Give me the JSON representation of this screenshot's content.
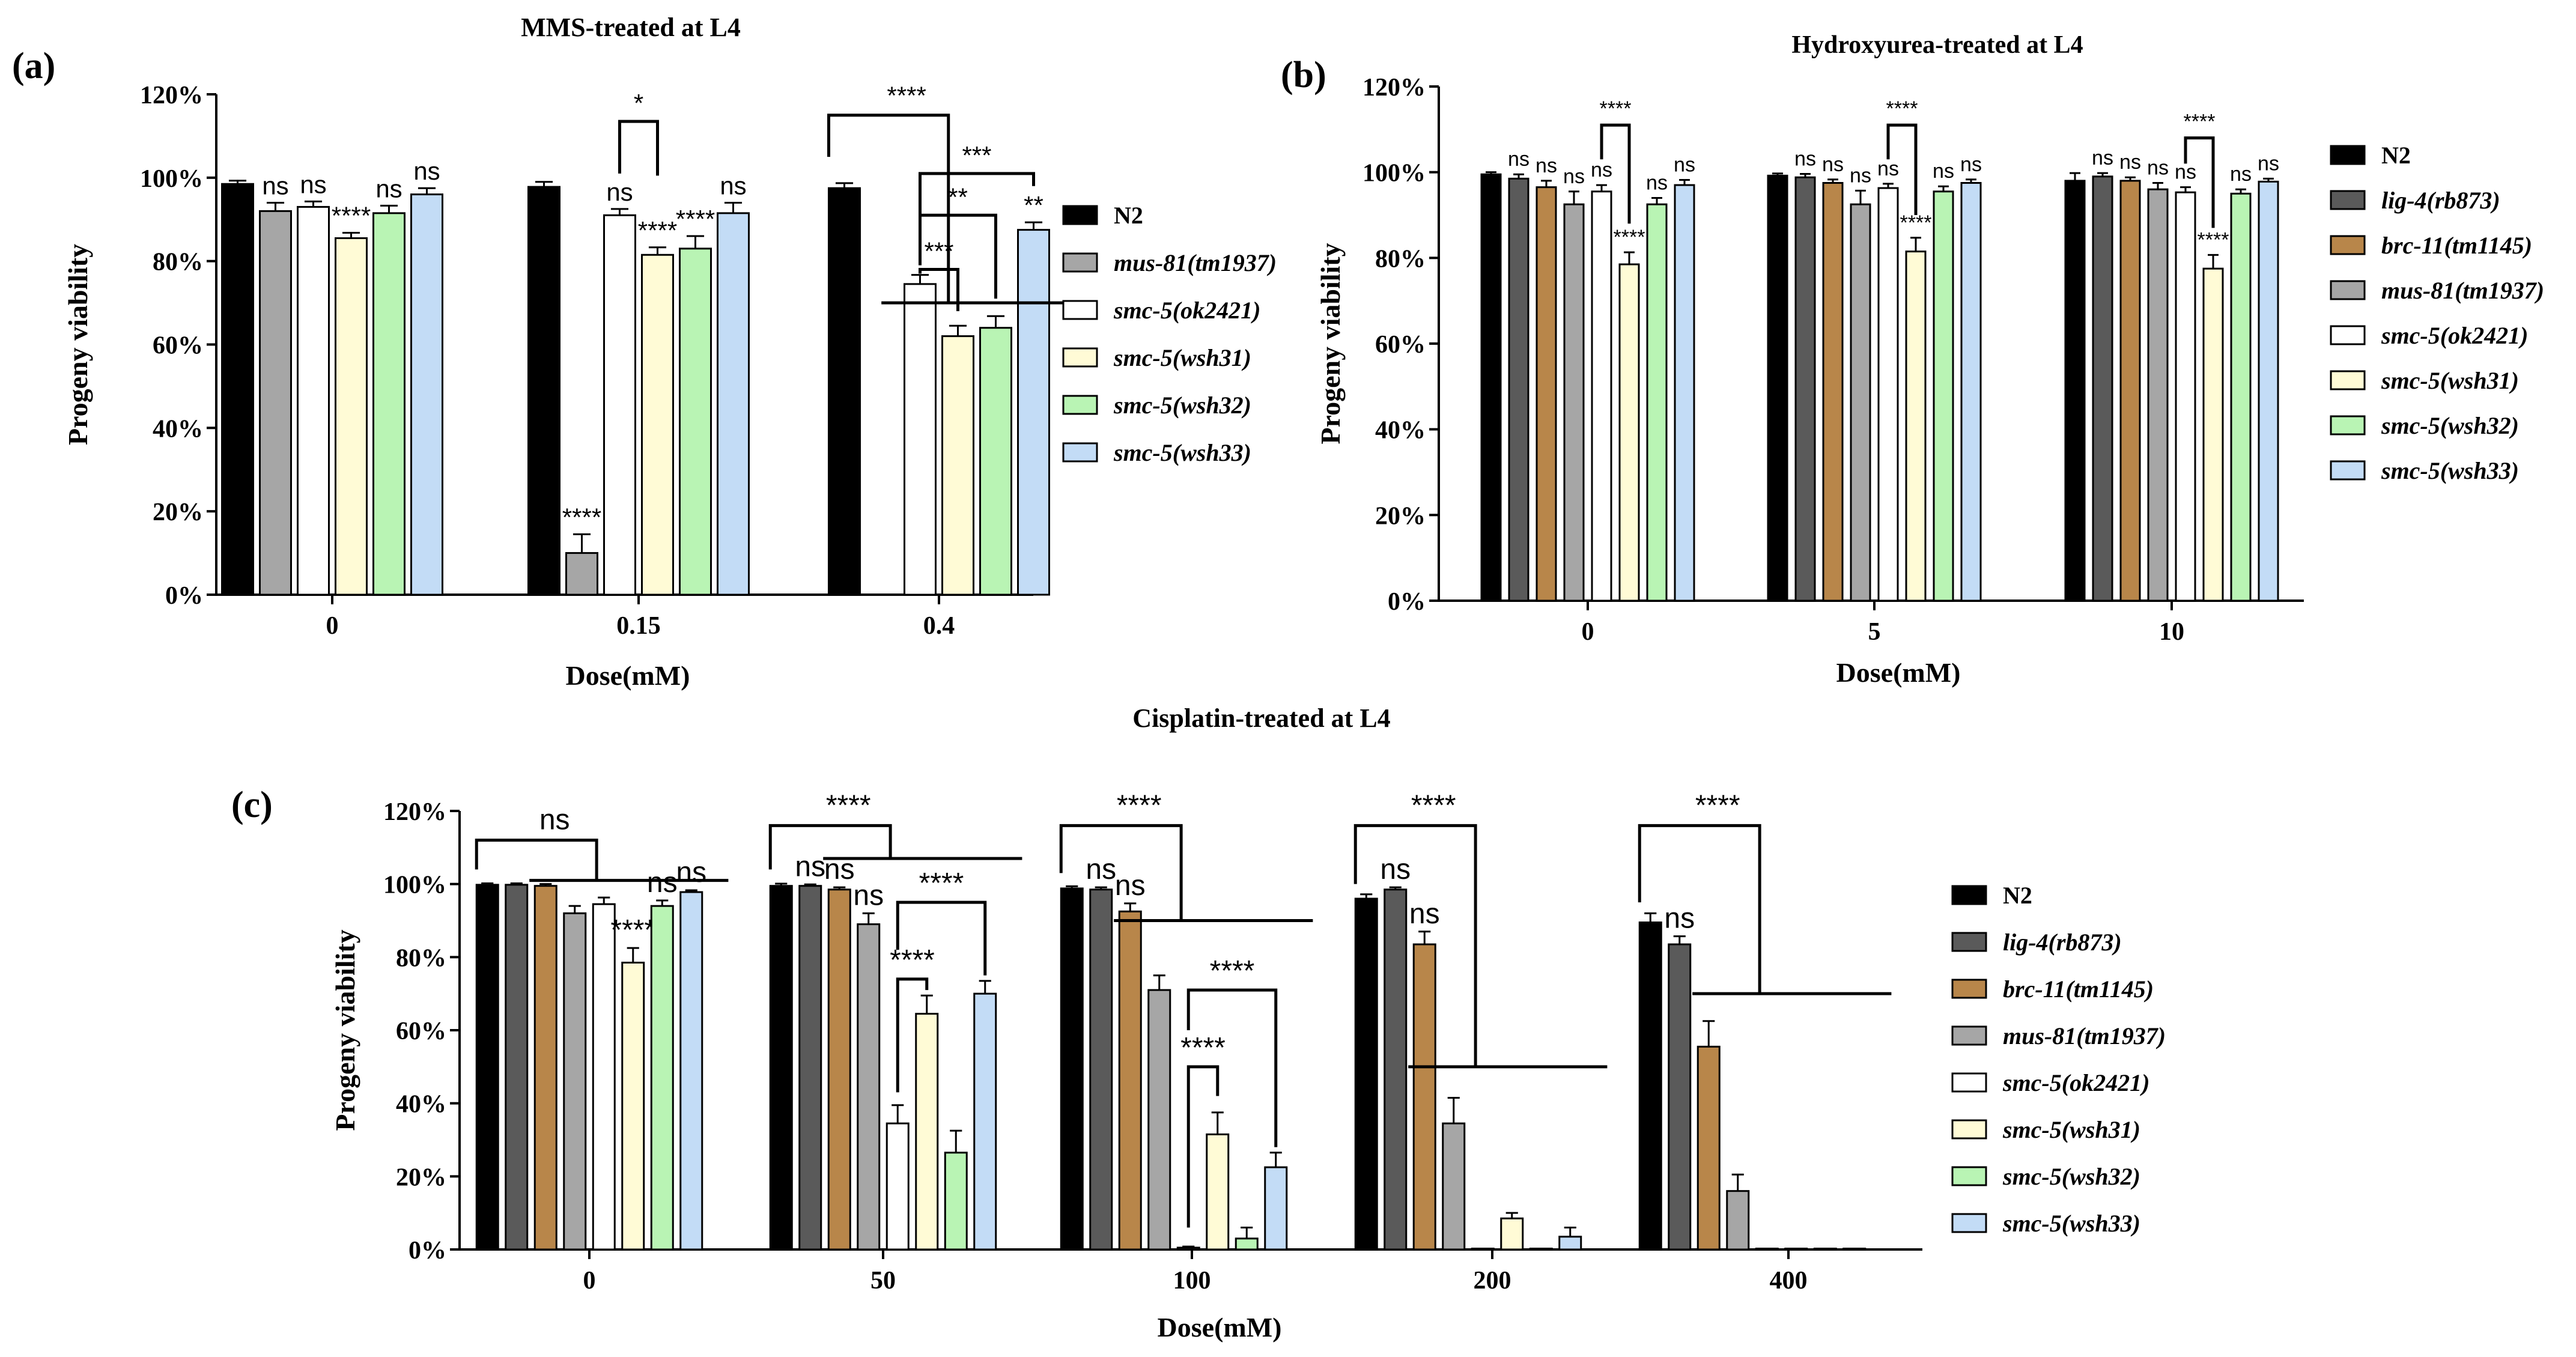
{
  "figure": {
    "description_free": true
  },
  "colors": {
    "N2": "#000000",
    "lig4": "#5a5a5a",
    "brc11": "#b8864a",
    "mus81": "#a6a6a6",
    "ok2421": "#ffffff",
    "wsh31": "#fffbd6",
    "wsh32": "#b9f4b4",
    "wsh33": "#c3dcf6"
  },
  "chart_data": [
    {
      "id": "a",
      "type": "bar",
      "panel_label": "(a)",
      "title": "MMS-treated at L4",
      "xlabel": "Dose(mM)",
      "ylabel": "Progeny viability",
      "ylim": [
        0,
        120
      ],
      "yticks": [
        "0%",
        "20%",
        "40%",
        "60%",
        "80%",
        "100%",
        "120%"
      ],
      "categories": [
        "0",
        "0.15",
        "0.4"
      ],
      "legend_placement": "right",
      "series": [
        {
          "name": "N2",
          "color_key": "N2",
          "values": [
            98.5,
            97.8,
            97.5
          ],
          "errors": [
            0.8,
            1.2,
            1.2
          ],
          "labels": [
            "",
            "",
            ""
          ]
        },
        {
          "name": "mus-81(tm1937)",
          "color_key": "mus81",
          "values": [
            92,
            10,
            null
          ],
          "errors": [
            2,
            4.5,
            0
          ],
          "labels": [
            "ns",
            "****",
            ""
          ]
        },
        {
          "name": "smc-5(ok2421)",
          "color_key": "ok2421",
          "values": [
            93,
            91,
            74.5
          ],
          "errors": [
            1.3,
            1.5,
            2.2
          ],
          "labels": [
            "ns",
            "ns",
            ""
          ]
        },
        {
          "name": "smc-5(wsh31)",
          "color_key": "wsh31",
          "values": [
            85.5,
            81.5,
            62
          ],
          "errors": [
            1.3,
            1.8,
            2.5
          ],
          "labels": [
            "****",
            "****",
            ""
          ]
        },
        {
          "name": "smc-5(wsh32)",
          "color_key": "wsh32",
          "values": [
            91.5,
            83,
            64
          ],
          "errors": [
            1.8,
            3,
            2.8
          ],
          "labels": [
            "ns",
            "****",
            ""
          ]
        },
        {
          "name": "smc-5(wsh33)",
          "color_key": "wsh33",
          "values": [
            96,
            91.5,
            87.5
          ],
          "errors": [
            1.5,
            2.5,
            1.8
          ],
          "labels": [
            "ns",
            "ns",
            "**"
          ]
        }
      ],
      "brackets": [
        {
          "type": "vert",
          "cat": 1,
          "a": 2,
          "b": 3,
          "top": 113.5,
          "endA": 101,
          "endB": 100.5,
          "label": "*"
        },
        {
          "type": "group",
          "cat": 2,
          "leftSeries": 0,
          "rightSeries": 5,
          "top": 115,
          "leftEnd": 105,
          "right": 70,
          "label": "****"
        },
        {
          "type": "vert",
          "cat": 2,
          "a": 2,
          "b": 5,
          "top": 101,
          "endA": 86,
          "endB": 98,
          "label": "***"
        },
        {
          "type": "vert",
          "cat": 2,
          "a": 2,
          "b": 4,
          "top": 91,
          "endA": 79,
          "endB": 71,
          "label": "**"
        },
        {
          "type": "vert",
          "cat": 2,
          "a": 2,
          "b": 3,
          "top": 78,
          "endA": 77,
          "endB": 68,
          "label": "***"
        }
      ]
    },
    {
      "id": "b",
      "type": "bar",
      "panel_label": "(b)",
      "title": "Hydroxyurea-treated at L4",
      "xlabel": "Dose(mM)",
      "ylabel": "Progeny viability",
      "ylim": [
        0,
        120
      ],
      "yticks": [
        "0%",
        "20%",
        "40%",
        "60%",
        "80%",
        "100%",
        "120%"
      ],
      "categories": [
        "0",
        "5",
        "10"
      ],
      "legend_placement": "right",
      "series": [
        {
          "name": "N2",
          "color_key": "N2",
          "values": [
            99.5,
            99.2,
            98
          ],
          "errors": [
            0.5,
            0.5,
            1.8
          ],
          "labels": [
            "",
            "",
            ""
          ]
        },
        {
          "name": "lig-4(rb873)",
          "color_key": "lig4",
          "values": [
            98.5,
            98.8,
            99
          ],
          "errors": [
            1,
            0.8,
            0.8
          ],
          "labels": [
            "ns",
            "ns",
            "ns"
          ]
        },
        {
          "name": "brc-11(tm1145)",
          "color_key": "brc11",
          "values": [
            96.5,
            97.5,
            98
          ],
          "errors": [
            1.5,
            0.8,
            0.8
          ],
          "labels": [
            "ns",
            "ns",
            "ns"
          ]
        },
        {
          "name": "mus-81(tm1937)",
          "color_key": "mus81",
          "values": [
            92.5,
            92.5,
            96
          ],
          "errors": [
            3,
            3.2,
            1.5
          ],
          "labels": [
            "ns",
            "ns",
            "ns"
          ]
        },
        {
          "name": "smc-5(ok2421)",
          "color_key": "ok2421",
          "values": [
            95.5,
            96.3,
            95.3
          ],
          "errors": [
            1.5,
            1,
            1.2
          ],
          "labels": [
            "ns",
            "ns",
            "ns"
          ]
        },
        {
          "name": "smc-5(wsh31)",
          "color_key": "wsh31",
          "values": [
            78.5,
            81.5,
            77.5
          ],
          "errors": [
            2.8,
            3.2,
            3.2
          ],
          "labels": [
            "****",
            "****",
            "****"
          ]
        },
        {
          "name": "smc-5(wsh32)",
          "color_key": "wsh32",
          "values": [
            92.5,
            95.5,
            95
          ],
          "errors": [
            1.5,
            1.2,
            1
          ],
          "labels": [
            "ns",
            "ns",
            "ns"
          ]
        },
        {
          "name": "smc-5(wsh33)",
          "color_key": "wsh33",
          "values": [
            97,
            97.5,
            97.8
          ],
          "errors": [
            1.2,
            0.8,
            0.7
          ],
          "labels": [
            "ns",
            "ns",
            "ns"
          ]
        }
      ],
      "brackets": [
        {
          "type": "vert",
          "cat": 0,
          "a": 4,
          "b": 5,
          "top": 111,
          "endA": 103,
          "endB": 88,
          "label": "****"
        },
        {
          "type": "vert",
          "cat": 1,
          "a": 4,
          "b": 5,
          "top": 111,
          "endA": 103,
          "endB": 90,
          "label": "****"
        },
        {
          "type": "vert",
          "cat": 2,
          "a": 4,
          "b": 5,
          "top": 108,
          "endA": 102,
          "endB": 87,
          "label": "****"
        }
      ]
    },
    {
      "id": "c",
      "type": "bar",
      "panel_label": "(c)",
      "title": "Cisplatin-treated at L4",
      "xlabel": "Dose(mM)",
      "ylabel": "Progeny viability",
      "ylim": [
        0,
        120
      ],
      "yticks": [
        "0%",
        "20%",
        "40%",
        "60%",
        "80%",
        "100%",
        "120%"
      ],
      "categories": [
        "0",
        "50",
        "100",
        "200",
        "400"
      ],
      "legend_placement": "right",
      "series": [
        {
          "name": "N2",
          "color_key": "N2",
          "values": [
            99.8,
            99.5,
            98.8,
            96,
            89.5
          ],
          "errors": [
            0.4,
            0.6,
            0.6,
            1.2,
            2.5
          ],
          "labels": [
            "",
            "",
            "",
            "",
            ""
          ]
        },
        {
          "name": "lig-4(rb873)",
          "color_key": "lig4",
          "values": [
            99.8,
            99.5,
            98.5,
            98.5,
            83.5
          ],
          "errors": [
            0.4,
            0.4,
            0.6,
            0.6,
            2.2
          ],
          "labels": [
            "",
            "ns",
            "ns",
            "ns",
            "ns"
          ]
        },
        {
          "name": "brc-11(tm1145)",
          "color_key": "brc11",
          "values": [
            99.5,
            98.5,
            92.5,
            83.5,
            55.5
          ],
          "errors": [
            0.5,
            0.6,
            2.2,
            3.5,
            7
          ],
          "labels": [
            "",
            "ns",
            "ns",
            "ns",
            ""
          ]
        },
        {
          "name": "mus-81(tm1937)",
          "color_key": "mus81",
          "values": [
            92,
            89,
            71,
            34.5,
            16
          ],
          "errors": [
            2,
            3,
            4,
            7,
            4.5
          ],
          "labels": [
            "",
            "ns",
            "",
            "",
            ""
          ]
        },
        {
          "name": "smc-5(ok2421)",
          "color_key": "ok2421",
          "values": [
            94.5,
            34.5,
            0.5,
            0,
            0
          ],
          "errors": [
            1.8,
            5,
            0.3,
            0,
            0
          ],
          "labels": [
            "",
            "",
            "",
            "",
            ""
          ]
        },
        {
          "name": "smc-5(wsh31)",
          "color_key": "wsh31",
          "values": [
            78.5,
            64.5,
            31.5,
            8.5,
            0
          ],
          "errors": [
            4,
            5,
            6,
            1.5,
            0
          ],
          "labels": [
            "****",
            "",
            "",
            "",
            ""
          ]
        },
        {
          "name": "smc-5(wsh32)",
          "color_key": "wsh32",
          "values": [
            94,
            26.5,
            3,
            0,
            0
          ],
          "errors": [
            1.5,
            6,
            3,
            0,
            0
          ],
          "labels": [
            "ns",
            "",
            "",
            "",
            ""
          ]
        },
        {
          "name": "smc-5(wsh33)",
          "color_key": "wsh33",
          "values": [
            97.8,
            70,
            22.5,
            3.5,
            0
          ],
          "errors": [
            0.5,
            3.5,
            4,
            2.5,
            0
          ],
          "labels": [
            "ns",
            "",
            "",
            "",
            ""
          ]
        }
      ],
      "brackets": [
        {
          "type": "group",
          "cat": 0,
          "leftSeries": 0,
          "rightSeries": 7,
          "top": 112,
          "leftEnd": 104,
          "right": 101,
          "label": "ns"
        },
        {
          "type": "group",
          "cat": 1,
          "leftSeries": 0,
          "rightSeries": 7,
          "top": 116,
          "leftEnd": 104,
          "right": 107,
          "label": "****"
        },
        {
          "type": "vert",
          "cat": 1,
          "a": 4,
          "b": 7,
          "top": 95,
          "endA": 82,
          "endB": 75,
          "label": "****"
        },
        {
          "type": "vert",
          "cat": 1,
          "a": 4,
          "b": 5,
          "top": 74,
          "endA": 43,
          "endB": 71,
          "label": "****"
        },
        {
          "type": "group",
          "cat": 2,
          "leftSeries": 0,
          "rightSeries": 7,
          "top": 116,
          "leftEnd": 103,
          "right": 90,
          "label": "****"
        },
        {
          "type": "vert",
          "cat": 2,
          "a": 4,
          "b": 7,
          "top": 71,
          "endA": 60,
          "endB": 28,
          "label": "****"
        },
        {
          "type": "vert",
          "cat": 2,
          "a": 4,
          "b": 5,
          "top": 50,
          "endA": 6,
          "endB": 42,
          "label": "****"
        },
        {
          "type": "group",
          "cat": 3,
          "leftSeries": 0,
          "rightSeries": 7,
          "top": 116,
          "leftEnd": 100,
          "right": 50,
          "label": "****"
        },
        {
          "type": "group",
          "cat": 4,
          "leftSeries": 0,
          "rightSeries": 7,
          "top": 116,
          "leftEnd": 95,
          "right": 70,
          "label": "****"
        }
      ]
    }
  ]
}
